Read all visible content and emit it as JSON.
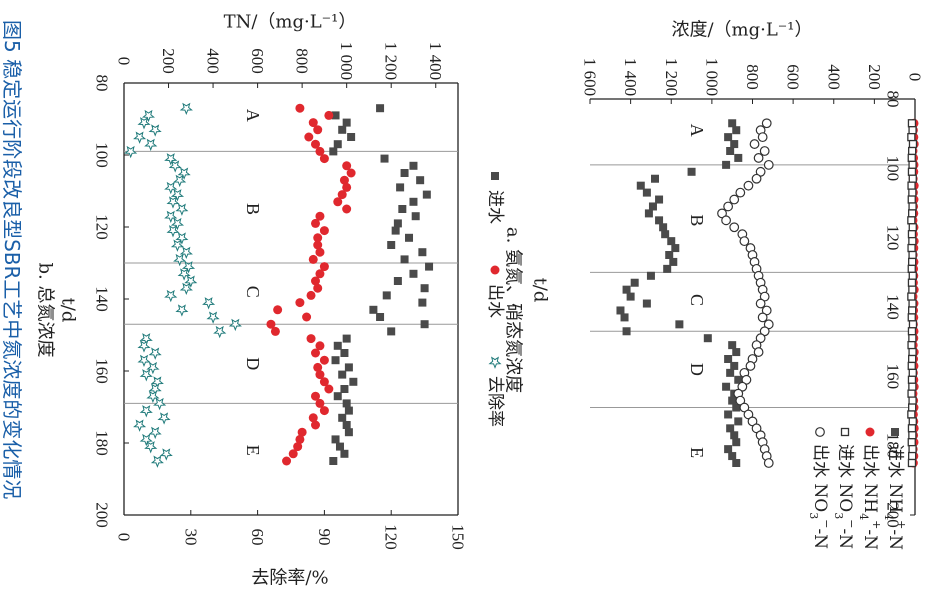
{
  "figure": {
    "number": "图5",
    "caption": "稳定运行阶段改良型SBR工艺中氮浓度的变化情况"
  },
  "colors": {
    "influent": "#4a4a4a",
    "effluent": "#e0282e",
    "removal": "#1f7a7a",
    "caption": "#1a5fa8"
  },
  "chart_data": [
    {
      "id": "a",
      "type": "scatter",
      "subtitle": "a. 氨氮、硝态氮浓度",
      "xlabel": "t/d",
      "ylabel": "浓度/（mg·L⁻¹）",
      "xlim": [
        80,
        200
      ],
      "ylim": [
        0,
        1600
      ],
      "x_ticks": [
        "80",
        "100",
        "120",
        "140",
        "160",
        "180",
        "200"
      ],
      "y_ticks": [
        "0",
        "200",
        "400",
        "600",
        "800",
        "1 000",
        "1 200",
        "1 400",
        "1 600"
      ],
      "phase_dividers": [
        99,
        130,
        147,
        169
      ],
      "phases": [
        {
          "label": "A",
          "x": 89
        },
        {
          "label": "B",
          "x": 115
        },
        {
          "label": "C",
          "x": 138
        },
        {
          "label": "D",
          "x": 158
        },
        {
          "label": "E",
          "x": 182
        }
      ],
      "legend": [
        {
          "label": "进水 NH4+-N",
          "marker": "filled-square"
        },
        {
          "label": "出水 NH4+-N",
          "marker": "filled-circle"
        },
        {
          "label": "进水 NO3−-N",
          "marker": "open-square"
        },
        {
          "label": "出水 NO3−-N",
          "marker": "open-circle"
        }
      ],
      "series": [
        {
          "name": "进水 NH4+-N",
          "marker": "filled-square",
          "color": "#4a4a4a",
          "x": [
            87,
            89,
            91,
            93,
            95,
            97,
            99,
            101,
            103,
            105,
            107,
            109,
            111,
            113,
            115,
            117,
            119,
            121,
            123,
            125,
            127,
            129,
            131,
            133,
            135,
            137,
            139,
            141,
            143,
            145,
            147,
            149,
            151,
            153,
            155,
            157,
            159,
            161,
            163,
            165,
            167,
            169,
            171,
            173,
            175,
            177,
            179,
            181,
            183,
            185
          ],
          "y": [
            900,
            880,
            920,
            890,
            910,
            870,
            930,
            1100,
            1280,
            1350,
            1320,
            1260,
            1290,
            1310,
            1260,
            1240,
            1230,
            1200,
            1180,
            1210,
            1190,
            1220,
            1300,
            1380,
            1420,
            1400,
            1320,
            1450,
            1430,
            1160,
            1420,
            1020,
            900,
            880,
            920,
            890,
            910,
            870,
            930,
            890,
            900,
            880,
            920,
            870,
            910,
            890,
            880,
            920,
            900,
            880
          ]
        },
        {
          "name": "出水 NH4+-N",
          "marker": "filled-circle",
          "color": "#e0282e",
          "x": [
            87,
            89,
            91,
            93,
            95,
            97,
            99,
            101,
            103,
            105,
            107,
            109,
            111,
            113,
            115,
            117,
            119,
            121,
            123,
            125,
            127,
            129,
            131,
            133,
            135,
            137,
            139,
            141,
            143,
            145,
            147,
            149,
            151,
            153,
            155,
            157,
            159,
            161,
            163,
            165,
            167,
            169,
            171,
            173,
            175,
            177,
            179,
            181,
            183,
            185
          ],
          "y": [
            5,
            8,
            6,
            4,
            10,
            7,
            5,
            6,
            9,
            4,
            8,
            5,
            7,
            6,
            10,
            5,
            8,
            4,
            6,
            9,
            5,
            7,
            6,
            8,
            4,
            10,
            5,
            7,
            6,
            8,
            5,
            6,
            9,
            4,
            7,
            5,
            8,
            6,
            4,
            10,
            7,
            5,
            8,
            6,
            4,
            7,
            5,
            9,
            6,
            8
          ]
        },
        {
          "name": "进水 NO3−-N",
          "marker": "open-square",
          "color": "#333333",
          "x": [
            87,
            89,
            91,
            93,
            95,
            97,
            99,
            101,
            103,
            105,
            107,
            109,
            111,
            113,
            115,
            117,
            119,
            121,
            123,
            125,
            127,
            129,
            131,
            133,
            135,
            137,
            139,
            141,
            143,
            145,
            147,
            149,
            151,
            153,
            155,
            157,
            159,
            161,
            163,
            165,
            167,
            169,
            171,
            173,
            175,
            177,
            179,
            181,
            183,
            185
          ],
          "y": [
            15,
            12,
            18,
            10,
            14,
            16,
            12,
            15,
            11,
            17,
            13,
            16,
            12,
            14,
            18,
            11,
            15,
            13,
            17,
            12,
            14,
            16,
            11,
            15,
            13,
            18,
            12,
            14,
            16,
            10,
            15,
            13,
            17,
            12,
            14,
            16,
            11,
            15,
            13,
            17,
            12,
            14,
            18,
            11,
            15,
            13,
            16,
            12,
            14,
            15
          ]
        },
        {
          "name": "出水 NO3−-N",
          "marker": "open-circle",
          "color": "#333333",
          "x": [
            87,
            89,
            91,
            93,
            95,
            97,
            99,
            101,
            103,
            105,
            107,
            109,
            111,
            113,
            115,
            117,
            119,
            121,
            123,
            125,
            127,
            129,
            131,
            133,
            135,
            137,
            139,
            141,
            143,
            145,
            147,
            149,
            151,
            153,
            155,
            157,
            159,
            161,
            163,
            165,
            167,
            169,
            171,
            173,
            175,
            177,
            179,
            181,
            183,
            185
          ],
          "y": [
            730,
            760,
            750,
            790,
            740,
            770,
            720,
            760,
            780,
            820,
            860,
            890,
            920,
            950,
            930,
            890,
            850,
            840,
            810,
            800,
            790,
            780,
            770,
            760,
            750,
            740,
            760,
            730,
            750,
            720,
            740,
            760,
            780,
            770,
            800,
            810,
            840,
            830,
            850,
            870,
            860,
            840,
            820,
            800,
            780,
            760,
            750,
            740,
            730,
            720
          ]
        }
      ]
    },
    {
      "id": "b",
      "type": "scatter",
      "subtitle": "b. 总氮浓度",
      "xlabel": "t/d",
      "ylabel": "TN/（mg·L⁻¹）",
      "y2label": "去除率/%",
      "xlim": [
        80,
        200
      ],
      "ylim": [
        0,
        1500
      ],
      "y2lim": [
        0,
        150
      ],
      "x_ticks": [
        "80",
        "100",
        "120",
        "140",
        "160",
        "180",
        "200"
      ],
      "y_ticks": [
        "0",
        "200",
        "400",
        "600",
        "800",
        "1 000",
        "1 200",
        "1 400"
      ],
      "y2_ticks": [
        "0",
        "30",
        "60",
        "90",
        "120",
        "150"
      ],
      "phase_dividers": [
        99,
        130,
        147,
        169
      ],
      "phases": [
        {
          "label": "A",
          "x": 89
        },
        {
          "label": "B",
          "x": 115
        },
        {
          "label": "C",
          "x": 138
        },
        {
          "label": "D",
          "x": 158
        },
        {
          "label": "E",
          "x": 182
        }
      ],
      "legend": [
        {
          "label": "进水",
          "marker": "filled-square"
        },
        {
          "label": "出水",
          "marker": "filled-circle"
        },
        {
          "label": "去除率",
          "marker": "star"
        }
      ],
      "series": [
        {
          "name": "进水",
          "marker": "filled-square",
          "color": "#4a4a4a",
          "x": [
            87,
            89,
            91,
            93,
            95,
            97,
            99,
            101,
            103,
            105,
            107,
            109,
            111,
            113,
            115,
            117,
            119,
            121,
            123,
            125,
            127,
            129,
            131,
            133,
            135,
            137,
            139,
            141,
            143,
            145,
            147,
            149,
            151,
            153,
            155,
            157,
            159,
            161,
            163,
            165,
            167,
            169,
            171,
            173,
            175,
            177,
            179,
            181,
            183,
            185
          ],
          "y": [
            1150,
            950,
            1000,
            980,
            1020,
            960,
            940,
            1170,
            1300,
            1260,
            1330,
            1240,
            1360,
            1300,
            1250,
            1310,
            1230,
            1220,
            1280,
            1200,
            1340,
            1260,
            1370,
            1300,
            1230,
            1350,
            1180,
            1340,
            1120,
            1150,
            1350,
            1200,
            1000,
            960,
            990,
            950,
            1010,
            980,
            1030,
            990,
            960,
            1000,
            1010,
            980,
            1000,
            1010,
            950,
            970,
            990,
            940
          ]
        },
        {
          "name": "出水",
          "marker": "filled-circle",
          "color": "#e0282e",
          "x": [
            87,
            89,
            91,
            93,
            95,
            97,
            99,
            101,
            103,
            105,
            107,
            109,
            111,
            113,
            115,
            117,
            119,
            121,
            123,
            125,
            127,
            129,
            131,
            133,
            135,
            137,
            139,
            141,
            143,
            145,
            147,
            149,
            151,
            153,
            155,
            157,
            159,
            161,
            163,
            165,
            167,
            169,
            171,
            173,
            175,
            177,
            179,
            181,
            183,
            185
          ],
          "y": [
            790,
            920,
            850,
            870,
            830,
            860,
            880,
            900,
            1000,
            1020,
            990,
            1000,
            980,
            960,
            1000,
            880,
            860,
            900,
            870,
            870,
            880,
            850,
            900,
            880,
            860,
            870,
            840,
            790,
            690,
            820,
            660,
            680,
            840,
            880,
            860,
            900,
            870,
            880,
            900,
            920,
            860,
            880,
            900,
            850,
            860,
            800,
            790,
            780,
            760,
            730
          ]
        },
        {
          "name": "去除率",
          "marker": "star",
          "color": "#1f7a7a",
          "axis": "y2",
          "x": [
            87,
            89,
            91,
            93,
            95,
            97,
            99,
            101,
            103,
            105,
            107,
            109,
            111,
            113,
            115,
            117,
            119,
            121,
            123,
            125,
            127,
            129,
            131,
            133,
            135,
            137,
            139,
            141,
            143,
            145,
            147,
            149,
            151,
            153,
            155,
            157,
            159,
            161,
            163,
            165,
            167,
            169,
            171,
            173,
            175,
            177,
            179,
            181,
            183,
            185
          ],
          "y": [
            28,
            11,
            9,
            14,
            7,
            12,
            3,
            21,
            23,
            27,
            25,
            21,
            24,
            22,
            26,
            21,
            24,
            22,
            26,
            24,
            28,
            25,
            29,
            27,
            30,
            28,
            21,
            38,
            26,
            40,
            50,
            43,
            10,
            9,
            14,
            9,
            13,
            10,
            15,
            14,
            13,
            16,
            10,
            18,
            7,
            14,
            10,
            12,
            19,
            15
          ]
        }
      ]
    }
  ]
}
